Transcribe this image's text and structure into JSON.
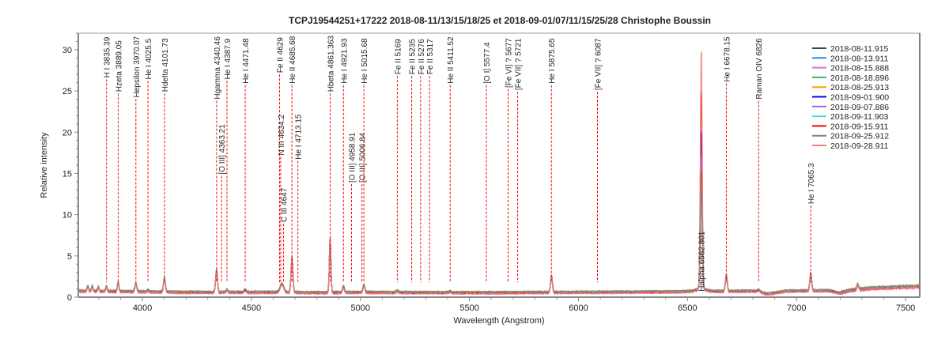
{
  "chart_data": {
    "type": "line",
    "title": "TCPJ19544251+17222  2018-08-11/13/15/18/25 et 2018-09-01/07/11/15/25/28  Christophe Boussin",
    "xlabel": "Wavelength (Angstrom)",
    "ylabel": "Relative intensity",
    "xlim": [
      3706,
      7565
    ],
    "ylim": [
      0,
      32
    ],
    "xticks": [
      4000,
      4500,
      5000,
      5500,
      6000,
      6500,
      7000,
      7500
    ],
    "yticks": [
      0,
      5,
      10,
      15,
      20,
      25,
      30
    ],
    "grid": false,
    "legend_position": "top-right",
    "continuum": [
      [
        3706,
        0.75
      ],
      [
        3900,
        0.7
      ],
      [
        4200,
        0.6
      ],
      [
        4600,
        0.6
      ],
      [
        4800,
        0.55
      ],
      [
        5000,
        0.6
      ],
      [
        5500,
        0.55
      ],
      [
        6000,
        0.6
      ],
      [
        6400,
        0.65
      ],
      [
        6800,
        0.75
      ],
      [
        6870,
        0.4
      ],
      [
        6950,
        0.75
      ],
      [
        7150,
        0.8
      ],
      [
        7200,
        0.5
      ],
      [
        7250,
        0.85
      ],
      [
        7350,
        1.1
      ],
      [
        7565,
        1.3
      ]
    ],
    "emission_lines": [
      {
        "wavelength": 3750,
        "peak": 0.6,
        "width": 5
      },
      {
        "wavelength": 3770,
        "peak": 0.6,
        "width": 5
      },
      {
        "wavelength": 3798,
        "peak": 0.5,
        "width": 5
      },
      {
        "wavelength": 3835,
        "peak": 0.6,
        "width": 5
      },
      {
        "wavelength": 3889,
        "peak": 1.1,
        "width": 5
      },
      {
        "wavelength": 3970,
        "peak": 1.0,
        "width": 6
      },
      {
        "wavelength": 4026,
        "peak": 0.2,
        "width": 5
      },
      {
        "wavelength": 4101,
        "peak": 1.7,
        "width": 6
      },
      {
        "wavelength": 4340,
        "peak": 2.7,
        "width": 6
      },
      {
        "wavelength": 4388,
        "peak": 0.3,
        "width": 6
      },
      {
        "wavelength": 4471,
        "peak": 0.3,
        "width": 6
      },
      {
        "wavelength": 4640,
        "peak": 1.0,
        "width": 12
      },
      {
        "wavelength": 4686,
        "peak": 4.3,
        "width": 6
      },
      {
        "wavelength": 4861,
        "peak": 6.7,
        "width": 5
      },
      {
        "wavelength": 4922,
        "peak": 0.7,
        "width": 6
      },
      {
        "wavelength": 5016,
        "peak": 0.9,
        "width": 6
      },
      {
        "wavelength": 5169,
        "peak": 0.2,
        "width": 6
      },
      {
        "wavelength": 5411,
        "peak": 0.15,
        "width": 6
      },
      {
        "wavelength": 5876,
        "peak": 2.0,
        "width": 6
      },
      {
        "wavelength": 6563,
        "peak": 11,
        "width": 6
      },
      {
        "wavelength": 6678,
        "peak": 1.9,
        "width": 6
      },
      {
        "wavelength": 6826,
        "peak": 0.25,
        "width": 10
      },
      {
        "wavelength": 7065,
        "peak": 2.1,
        "width": 6
      },
      {
        "wavelength": 7281,
        "peak": 0.6,
        "width": 6
      }
    ],
    "series": [
      {
        "name": "2018-08-11.915",
        "color": "#2f4f4f",
        "halpha_peak": 11.5,
        "offset": 0.05
      },
      {
        "name": "2018-08-13.911",
        "color": "#1e90ff",
        "halpha_peak": 12.0,
        "offset": 0.0
      },
      {
        "name": "2018-08-15.888",
        "color": "#da70d6",
        "halpha_peak": 11.0,
        "offset": -0.05
      },
      {
        "name": "2018-08-18.896",
        "color": "#3cb371",
        "halpha_peak": 11.8,
        "offset": 0.05
      },
      {
        "name": "2018-08-25.913",
        "color": "#ffa500",
        "halpha_peak": 15.1,
        "offset": 0.1
      },
      {
        "name": "2018-09-01.900",
        "color": "#0000ff",
        "halpha_peak": 20.0,
        "offset": -0.05
      },
      {
        "name": "2018-09-07.886",
        "color": "#9370db",
        "halpha_peak": 12.5,
        "offset": 0.0
      },
      {
        "name": "2018-09-11.903",
        "color": "#40e0d0",
        "halpha_peak": 11.0,
        "offset": 0.0
      },
      {
        "name": "2018-09-15.911",
        "color": "#ff0000",
        "halpha_peak": 24.9,
        "offset": -0.1
      },
      {
        "name": "2018-09-25.912",
        "color": "#808080",
        "halpha_peak": 13.0,
        "offset": 0.1
      },
      {
        "name": "2018-09-28.911",
        "color": "#f08080",
        "halpha_peak": 30.1,
        "offset": -0.15
      }
    ],
    "annotation_color": "#ff0000",
    "annotations": [
      {
        "label": "H I 3835.39",
        "wavelength": 3835.39,
        "y": 26.4
      },
      {
        "label": "Hzeta 3889.05",
        "wavelength": 3889.05,
        "y": 24.7
      },
      {
        "label": "Hepsilon 3970.07",
        "wavelength": 3970.07,
        "y": 24.0
      },
      {
        "label": "He I 4025.5",
        "wavelength": 4025.5,
        "y": 26.2
      },
      {
        "label": "Hdelta 4101.73",
        "wavelength": 4101.73,
        "y": 24.7
      },
      {
        "label": "Hgamma 4340.46",
        "wavelength": 4340.46,
        "y": 23.8
      },
      {
        "label": "[O III] 4363.21",
        "wavelength": 4363.21,
        "y": 14.7
      },
      {
        "label": "He I 4387.9",
        "wavelength": 4387.9,
        "y": 26.2
      },
      {
        "label": "He I 4471.48",
        "wavelength": 4471.48,
        "y": 25.7
      },
      {
        "label": "Fe II 4629",
        "wavelength": 4629,
        "y": 27.0
      },
      {
        "label": "N III 4634.2",
        "wavelength": 4634.2,
        "y": 17.0
      },
      {
        "label": "C III 4647",
        "wavelength": 4647,
        "y": 8.9
      },
      {
        "label": "He II 4685.68",
        "wavelength": 4685.68,
        "y": 25.7
      },
      {
        "label": "He I 4713.15",
        "wavelength": 4713.15,
        "y": 16.5
      },
      {
        "label": "Hbeta 4861.363",
        "wavelength": 4861.363,
        "y": 24.7
      },
      {
        "label": "He I 4921.93",
        "wavelength": 4921.93,
        "y": 25.7
      },
      {
        "label": "[O III] 4958.91",
        "wavelength": 4958.91,
        "y": 13.7
      },
      {
        "label": "[O III] 5006.84",
        "wavelength": 5006.84,
        "y": 13.7
      },
      {
        "label": "He I 5015.68",
        "wavelength": 5015.68,
        "y": 25.7
      },
      {
        "label": "Fe II 5169",
        "wavelength": 5169,
        "y": 26.8
      },
      {
        "label": "Fe II 5235",
        "wavelength": 5235,
        "y": 26.8
      },
      {
        "label": "Fe II 5276",
        "wavelength": 5276,
        "y": 26.8
      },
      {
        "label": "Fe II 5317",
        "wavelength": 5317,
        "y": 26.8
      },
      {
        "label": "He II 5411.52",
        "wavelength": 5411.52,
        "y": 25.7
      },
      {
        "label": "[O I] 5577.4",
        "wavelength": 5577.4,
        "y": 25.7
      },
      {
        "label": "[Fe VI] ? 5677",
        "wavelength": 5677,
        "y": 25.2
      },
      {
        "label": "[Fe VII] ? 5721",
        "wavelength": 5721,
        "y": 24.9
      },
      {
        "label": "He I 5875.65",
        "wavelength": 5875.65,
        "y": 25.7
      },
      {
        "label": "[Fe VII] ? 6087",
        "wavelength": 6087,
        "y": 24.9
      },
      {
        "label": "Halpha 6562.801",
        "wavelength": 6562.801,
        "y": 0.6,
        "below": true
      },
      {
        "label": "He I 6678.15",
        "wavelength": 6678.15,
        "y": 25.9
      },
      {
        "label": "Raman OIV 6826",
        "wavelength": 6826,
        "y": 23.8
      },
      {
        "label": "He I 7065.3",
        "wavelength": 7065.3,
        "y": 11.1
      }
    ]
  }
}
